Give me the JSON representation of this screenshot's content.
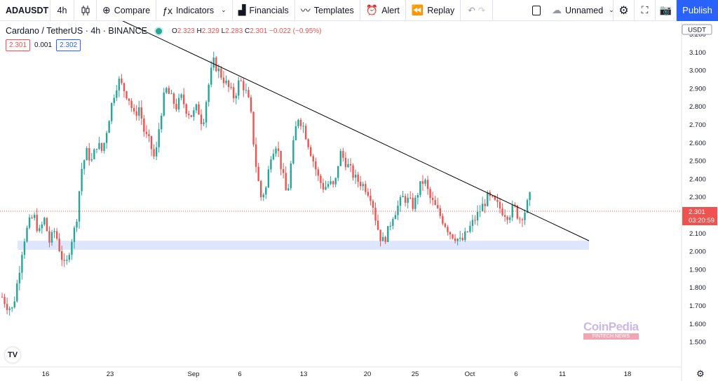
{
  "toolbar": {
    "symbol": "ADAUSDT",
    "interval": "4h",
    "compare": "Compare",
    "indicators": "Indicators",
    "financials": "Financials",
    "templates": "Templates",
    "alert": "Alert",
    "replay": "Replay",
    "layout_name": "Unnamed",
    "publish": "Publish"
  },
  "legend": {
    "title": "Cardano / TetherUS · 4h · BINANCE",
    "open_label": "O",
    "open": "2.323",
    "high_label": "H",
    "high": "2.329",
    "low_label": "L",
    "low": "2.283",
    "close_label": "C",
    "close": "2.301",
    "change": "−0.022 (−0.95%)",
    "sell_price": "2.301",
    "spread": "0.001",
    "buy_price": "2.302"
  },
  "currency_badge": "USDT",
  "current_price": "2.301",
  "countdown": "03:20:59",
  "watermark": {
    "brand": "CoinPedia",
    "sub": "FINTECH NEWS"
  },
  "logo": "TV",
  "colors": {
    "up": "#26a69a",
    "down": "#ef5350",
    "support_zone": "#d9e2ff",
    "trendline": "#000000",
    "accent": "#2962ff"
  },
  "chart_data": {
    "type": "candlestick",
    "yticks": [
      "3.200",
      "3.100",
      "3.000",
      "2.900",
      "2.800",
      "2.700",
      "2.600",
      "2.500",
      "2.400",
      "2.300",
      "2.200",
      "2.100",
      "2.000",
      "1.900",
      "1.800",
      "1.700",
      "1.600",
      "1.500"
    ],
    "ylim": [
      1.47,
      3.3
    ],
    "xticks": [
      "16",
      "23",
      "Sep",
      "6",
      "13",
      "20",
      "25",
      "Oct",
      "6",
      "11",
      "18"
    ],
    "trendline": {
      "from": {
        "x": "Aug 31",
        "y": 3.32
      },
      "to": {
        "x": "Oct 9",
        "y": 2.06
      }
    },
    "support_zone": {
      "y_low": 2.01,
      "y_high": 2.06
    },
    "price_path": [
      [
        1.75,
        1.7,
        1.68,
        1.85,
        2.05,
        2.15,
        2.2,
        2.1,
        2.18,
        2.05,
        2.12,
        2.0,
        1.9,
        2.05,
        2.15,
        2.45,
        2.55,
        2.5,
        2.6,
        2.55,
        2.7,
        2.85,
        2.95,
        2.9,
        2.85,
        2.75,
        2.8,
        2.65,
        2.6,
        2.5,
        2.75,
        2.9,
        2.85,
        2.8,
        2.85,
        2.78,
        2.75,
        2.8,
        2.7,
        2.9,
        3.05,
        3.0,
        2.95,
        2.9,
        2.85,
        2.95,
        2.9,
        2.8,
        2.5,
        2.3,
        2.35,
        2.55,
        2.6,
        2.45,
        2.3,
        2.55,
        2.75,
        2.7,
        2.6,
        2.5,
        2.4,
        2.35,
        2.38,
        2.35,
        2.55,
        2.5,
        2.45,
        2.4,
        2.38,
        2.35,
        2.3,
        2.15,
        2.05,
        2.1,
        2.2,
        2.25,
        2.3,
        2.28,
        2.25,
        2.35,
        2.4,
        2.3,
        2.25,
        2.2,
        2.15,
        2.1,
        2.08,
        2.05,
        2.1,
        2.15,
        2.2,
        2.25,
        2.3,
        2.28,
        2.25,
        2.22,
        2.2,
        2.25,
        2.18,
        2.22,
        2.3
      ]
    ]
  }
}
